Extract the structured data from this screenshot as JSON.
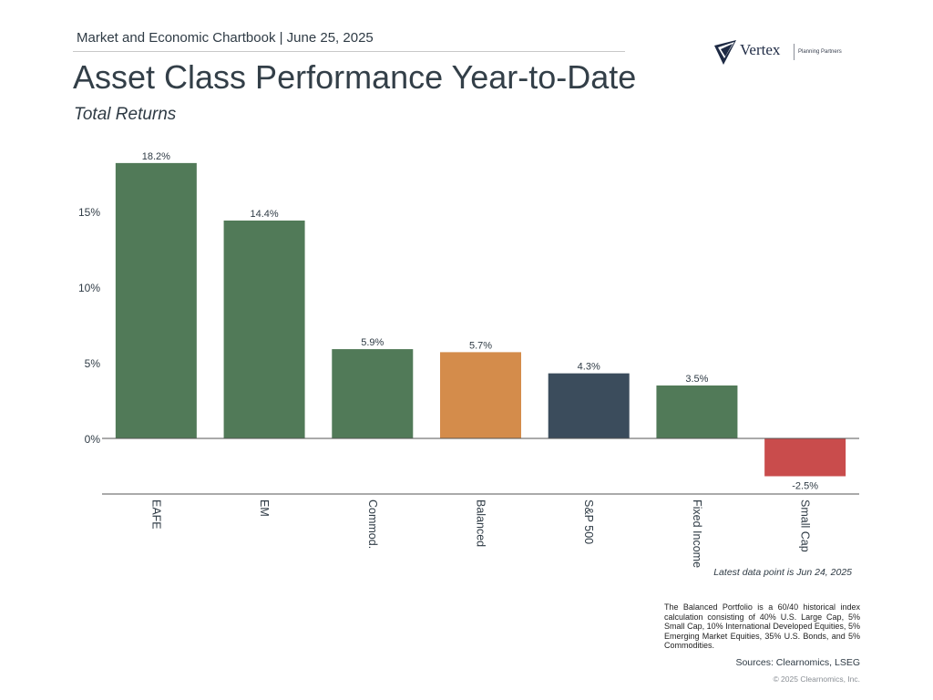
{
  "header": {
    "chartbook_line": "Market and Economic Chartbook | June 25, 2025",
    "title": "Asset Class Performance Year-to-Date",
    "subtitle": "Total Returns"
  },
  "logo": {
    "name": "Vertex",
    "tagline": "Planning Partners"
  },
  "chart_data": {
    "type": "bar",
    "title": "Asset Class Performance Year-to-Date",
    "subtitle": "Total Returns",
    "categories": [
      "EAFE",
      "EM",
      "Commod.",
      "Balanced",
      "S&P 500",
      "Fixed Income",
      "Small Cap"
    ],
    "values": [
      18.2,
      14.4,
      5.9,
      5.7,
      4.3,
      3.5,
      -2.5
    ],
    "value_labels": [
      "18.2%",
      "14.4%",
      "5.9%",
      "5.7%",
      "4.3%",
      "3.5%",
      "-2.5%"
    ],
    "colors": [
      "#517a58",
      "#517a58",
      "#517a58",
      "#d48c4b",
      "#3b4c5c",
      "#517a58",
      "#c94c4c"
    ],
    "yticks": [
      0,
      5,
      10,
      15
    ],
    "ytick_labels": [
      "0%",
      "5%",
      "10%",
      "15%"
    ],
    "ylim": [
      -3.7,
      19
    ],
    "xlabel": "",
    "ylabel": "",
    "grid": false,
    "legend": "none",
    "x_label_orientation": "rotated-vertical"
  },
  "notes": {
    "latest_data": "Latest data point is Jun 24, 2025",
    "footnote": "The Balanced Portfolio is a 60/40 historical index calculation consisting of 40% U.S. Large Cap, 5% Small Cap, 10% International Developed Equities, 5% Emerging Market Equities, 35% U.S. Bonds, and 5% Commodities.",
    "sources": "Sources: Clearnomics, LSEG",
    "copyright": "© 2025 Clearnomics, Inc."
  }
}
